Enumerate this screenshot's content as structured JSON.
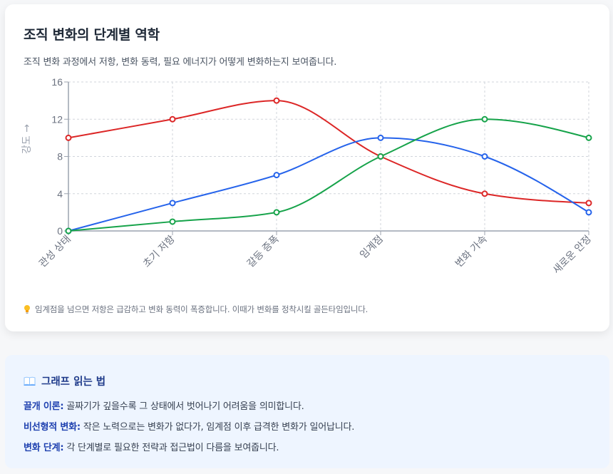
{
  "header": {
    "title": "조직 변화의 단계별 역학",
    "subtitle": "조직 변화 과정에서 저항, 변화 동력, 필요 에너지가 어떻게 변화하는지 보여줍니다."
  },
  "tip": {
    "icon": "lightbulb-icon",
    "text": "임계점을 넘으면 저항은 급감하고 변화 동력이 폭증합니다. 이때가 변화를 정착시킬 골든타임입니다."
  },
  "info": {
    "icon": "open-book-icon",
    "title": "그래프 읽는 법",
    "rows": [
      {
        "label": "끌개 이론:",
        "text": "골짜기가 깊을수록 그 상태에서 벗어나기 어려움을 의미합니다."
      },
      {
        "label": "비선형적 변화:",
        "text": "작은 노력으로는 변화가 없다가, 임계점 이후 급격한 변화가 일어납니다."
      },
      {
        "label": "변화 단계:",
        "text": "각 단계별로 필요한 전략과 접근법이 다름을 보여줍니다."
      }
    ]
  },
  "chart_data": {
    "type": "line",
    "title": "조직 변화의 단계별 역학",
    "xlabel": "",
    "ylabel": "강도 →",
    "categories": [
      "관성 상태",
      "초기 저항",
      "갈등 증폭",
      "임계점",
      "변화 가속",
      "새로운 안정"
    ],
    "series": [
      {
        "name": "저항",
        "color": "#dc2626",
        "values": [
          10,
          12,
          14,
          8,
          4,
          3
        ]
      },
      {
        "name": "변화 동력",
        "color": "#2563eb",
        "values": [
          0,
          3,
          6,
          10,
          8,
          2
        ]
      },
      {
        "name": "필요 에너지",
        "color": "#16a34a",
        "values": [
          0,
          1,
          2,
          8,
          12,
          10
        ]
      }
    ],
    "ylim": [
      0,
      16
    ],
    "yticks": [
      0,
      4,
      8,
      12,
      16
    ],
    "grid": true,
    "legend": "none",
    "smooth": true
  }
}
